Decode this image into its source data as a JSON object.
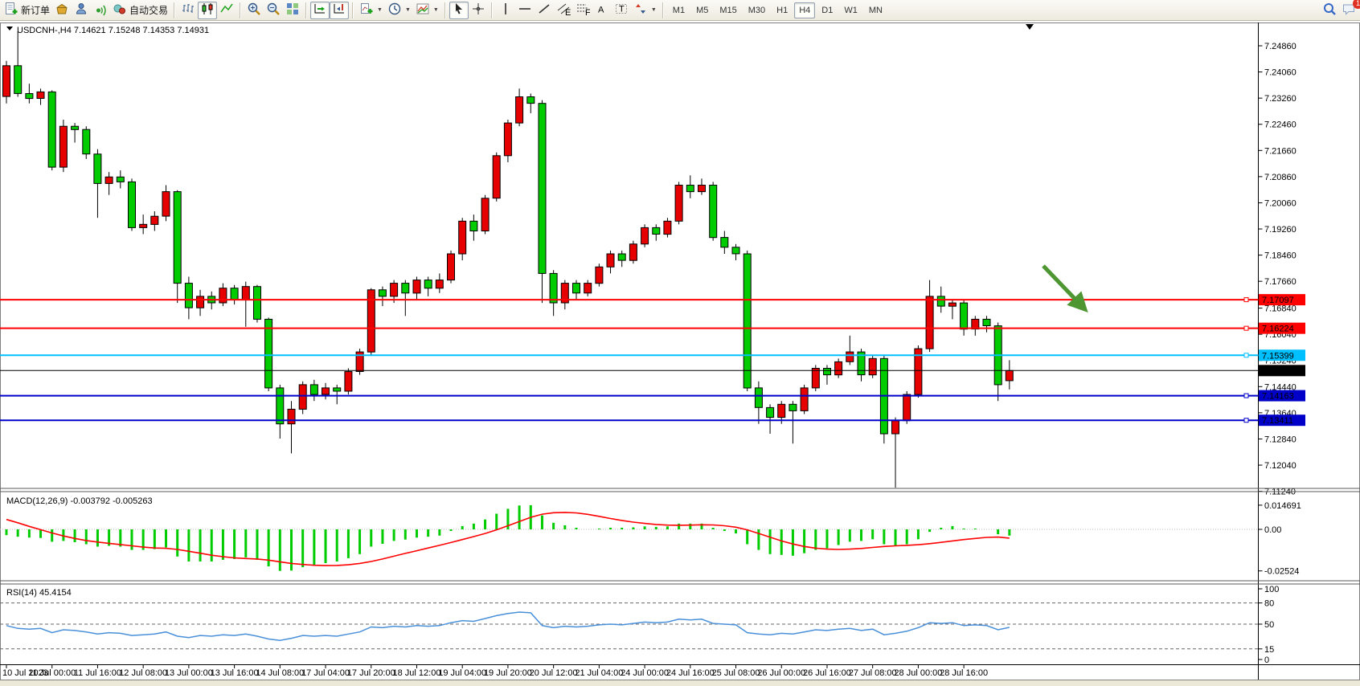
{
  "toolbar": {
    "new_order_label": "新订单",
    "auto_trading_label": "自动交易",
    "icon_names": [
      "new-order",
      "mailbox",
      "profile",
      "signal",
      "auto-trading",
      "bar-chart",
      "candlestick-chart",
      "line-chart",
      "zoom-in",
      "zoom-out",
      "tile-windows",
      "auto-scroll",
      "chart-shift",
      "indicators",
      "periods",
      "templates",
      "cursor",
      "crosshair",
      "vertical-line",
      "horizontal-line",
      "trendline",
      "equidistant-channel",
      "fibonacci-retracement",
      "text",
      "text-label",
      "arrows",
      "search",
      "chat"
    ],
    "pressed_buttons": [
      "candlestick-chart",
      "auto-scroll",
      "chart-shift",
      "cursor"
    ],
    "timeframes": [
      "M1",
      "M5",
      "M15",
      "M30",
      "H1",
      "H4",
      "D1",
      "W1",
      "MN"
    ],
    "active_timeframe": "H4",
    "notification_badge": "1"
  },
  "chart": {
    "symbol_period": "USDCNH-,H4",
    "ohlc": "7.14621 7.15248 7.14353 7.14931"
  },
  "chart_data": {
    "type": "candlestick",
    "symbol": "USDCNH",
    "timeframe": "H4",
    "ohlc_current": {
      "open": 7.14621,
      "high": 7.15248,
      "low": 7.14353,
      "close": 7.14931
    },
    "colors": {
      "up": "#E60000",
      "down": "#00CC00",
      "outline": "#000000",
      "background": "#FFFFFF"
    },
    "price_ticks": [
      "7.24860",
      "7.24060",
      "7.23260",
      "7.22460",
      "7.21660",
      "7.20860",
      "7.20060",
      "7.19260",
      "7.18460",
      "7.17660",
      "7.16840",
      "7.16040",
      "7.15240",
      "7.14440",
      "7.13640",
      "7.12840",
      "7.12040",
      "7.11240"
    ],
    "x_labels": [
      "10 Jul 2023",
      "11 Jul 00:00",
      "11 Jul 16:00",
      "12 Jul 08:00",
      "13 Jul 00:00",
      "13 Jul 16:00",
      "14 Jul 08:00",
      "17 Jul 04:00",
      "17 Jul 20:00",
      "18 Jul 12:00",
      "19 Jul 04:00",
      "19 Jul 20:00",
      "20 Jul 12:00",
      "21 Jul 04:00",
      "24 Jul 00:00",
      "24 Jul 16:00",
      "25 Jul 08:00",
      "26 Jul 00:00",
      "26 Jul 16:00",
      "27 Jul 08:00",
      "28 Jul 00:00",
      "28 Jul 16:00"
    ],
    "hlines": [
      {
        "label": "7.17097",
        "value": 7.17097,
        "color": "#FF0000",
        "width": 2
      },
      {
        "label": "7.16224",
        "value": 7.16224,
        "color": "#FF0000",
        "width": 2
      },
      {
        "label": "7.15399",
        "value": 7.15399,
        "color": "#00BFFF",
        "width": 2
      },
      {
        "label": "7.14163",
        "value": 7.14163,
        "color": "#0000C8",
        "width": 2
      },
      {
        "label": "7.13411",
        "value": 7.13411,
        "color": "#0000C8",
        "width": 2
      }
    ],
    "current_price": {
      "label": "7.14931",
      "value": 7.14931,
      "color": "#000000"
    },
    "annotation_arrow": {
      "color": "#4E9632",
      "from": [
        1298,
        331
      ],
      "to": [
        1345,
        380
      ]
    },
    "candles": [
      [
        7.2331,
        7.244,
        7.231,
        7.2425
      ],
      [
        7.2425,
        7.253,
        7.233,
        7.234
      ],
      [
        7.234,
        7.237,
        7.231,
        7.2325
      ],
      [
        7.2325,
        7.2355,
        7.2305,
        7.2345
      ],
      [
        7.2345,
        7.235,
        7.2105,
        7.2115
      ],
      [
        7.2115,
        7.226,
        7.21,
        7.224
      ],
      [
        7.224,
        7.225,
        7.219,
        7.223
      ],
      [
        7.223,
        7.224,
        7.214,
        7.2155
      ],
      [
        7.2155,
        7.217,
        7.196,
        7.2065
      ],
      [
        7.2065,
        7.21,
        7.203,
        7.2085
      ],
      [
        7.2085,
        7.2105,
        7.205,
        7.207
      ],
      [
        7.207,
        7.208,
        7.192,
        7.193
      ],
      [
        7.193,
        7.197,
        7.191,
        7.194
      ],
      [
        7.194,
        7.198,
        7.192,
        7.1965
      ],
      [
        7.1965,
        7.206,
        7.195,
        7.204
      ],
      [
        7.204,
        7.2045,
        7.17,
        7.176
      ],
      [
        7.176,
        7.178,
        7.165,
        7.1685
      ],
      [
        7.1685,
        7.174,
        7.166,
        7.172
      ],
      [
        7.172,
        7.1735,
        7.168,
        7.17
      ],
      [
        7.17,
        7.176,
        7.169,
        7.1745
      ],
      [
        7.1745,
        7.1755,
        7.1695,
        7.171
      ],
      [
        7.171,
        7.1765,
        7.1627,
        7.175
      ],
      [
        7.175,
        7.1755,
        7.164,
        7.165
      ],
      [
        7.165,
        7.1655,
        7.143,
        7.144
      ],
      [
        7.144,
        7.145,
        7.1285,
        7.133
      ],
      [
        7.133,
        7.14,
        7.124,
        7.1375
      ],
      [
        7.1375,
        7.146,
        7.136,
        7.145
      ],
      [
        7.145,
        7.1465,
        7.14,
        7.142
      ],
      [
        7.142,
        7.1455,
        7.1405,
        7.144
      ],
      [
        7.144,
        7.145,
        7.139,
        7.143
      ],
      [
        7.143,
        7.15,
        7.142,
        7.149
      ],
      [
        7.149,
        7.156,
        7.148,
        7.155
      ],
      [
        7.155,
        7.1745,
        7.154,
        7.174
      ],
      [
        7.174,
        7.175,
        7.169,
        7.172
      ],
      [
        7.172,
        7.177,
        7.17,
        7.176
      ],
      [
        7.176,
        7.177,
        7.166,
        7.173
      ],
      [
        7.173,
        7.178,
        7.171,
        7.177
      ],
      [
        7.177,
        7.178,
        7.172,
        7.1745
      ],
      [
        7.1745,
        7.179,
        7.173,
        7.177
      ],
      [
        7.177,
        7.186,
        7.176,
        7.185
      ],
      [
        7.185,
        7.196,
        7.183,
        7.195
      ],
      [
        7.195,
        7.197,
        7.189,
        7.192
      ],
      [
        7.192,
        7.203,
        7.191,
        7.202
      ],
      [
        7.202,
        7.216,
        7.201,
        7.215
      ],
      [
        7.215,
        7.226,
        7.213,
        7.225
      ],
      [
        7.225,
        7.2355,
        7.224,
        7.233
      ],
      [
        7.233,
        7.234,
        7.228,
        7.231
      ],
      [
        7.231,
        7.232,
        7.17,
        7.179
      ],
      [
        7.179,
        7.18,
        7.166,
        7.17
      ],
      [
        7.17,
        7.177,
        7.168,
        7.176
      ],
      [
        7.176,
        7.177,
        7.171,
        7.173
      ],
      [
        7.173,
        7.177,
        7.172,
        7.176
      ],
      [
        7.176,
        7.182,
        7.175,
        7.181
      ],
      [
        7.181,
        7.186,
        7.179,
        7.185
      ],
      [
        7.185,
        7.186,
        7.181,
        7.183
      ],
      [
        7.183,
        7.189,
        7.182,
        7.188
      ],
      [
        7.188,
        7.194,
        7.187,
        7.193
      ],
      [
        7.193,
        7.194,
        7.189,
        7.191
      ],
      [
        7.191,
        7.196,
        7.19,
        7.195
      ],
      [
        7.195,
        7.207,
        7.194,
        7.206
      ],
      [
        7.206,
        7.209,
        7.202,
        7.204
      ],
      [
        7.204,
        7.208,
        7.203,
        7.206
      ],
      [
        7.206,
        7.207,
        7.189,
        7.19
      ],
      [
        7.19,
        7.192,
        7.185,
        7.187
      ],
      [
        7.187,
        7.188,
        7.183,
        7.185
      ],
      [
        7.185,
        7.186,
        7.143,
        7.144
      ],
      [
        7.144,
        7.146,
        7.133,
        7.138
      ],
      [
        7.138,
        7.139,
        7.13,
        7.135
      ],
      [
        7.135,
        7.14,
        7.133,
        7.139
      ],
      [
        7.139,
        7.14,
        7.127,
        7.137
      ],
      [
        7.137,
        7.145,
        7.136,
        7.144
      ],
      [
        7.144,
        7.151,
        7.143,
        7.15
      ],
      [
        7.15,
        7.151,
        7.145,
        7.148
      ],
      [
        7.148,
        7.153,
        7.147,
        7.152
      ],
      [
        7.152,
        7.16,
        7.151,
        7.155
      ],
      [
        7.155,
        7.156,
        7.146,
        7.148
      ],
      [
        7.148,
        7.154,
        7.147,
        7.153
      ],
      [
        7.153,
        7.154,
        7.127,
        7.13
      ],
      [
        7.13,
        7.135,
        7.1135,
        7.134
      ],
      [
        7.134,
        7.143,
        7.133,
        7.142
      ],
      [
        7.142,
        7.157,
        7.141,
        7.156
      ],
      [
        7.156,
        7.177,
        7.155,
        7.172
      ],
      [
        7.172,
        7.175,
        7.167,
        7.169
      ],
      [
        7.169,
        7.171,
        7.165,
        7.17
      ],
      [
        7.17,
        7.171,
        7.16,
        7.162
      ],
      [
        7.162,
        7.166,
        7.16,
        7.165
      ],
      [
        7.165,
        7.166,
        7.161,
        7.163
      ],
      [
        7.163,
        7.164,
        7.14,
        7.145
      ],
      [
        7.14621,
        7.15248,
        7.14353,
        7.14931
      ]
    ],
    "macd": {
      "label": "MACD(12,26,9)",
      "values": "-0.003792 -0.005263",
      "axis": [
        "0.014691",
        "0.00",
        "-0.02524"
      ],
      "hist_color": "#00CC00",
      "signal_color": "#FF0000",
      "histogram": [
        -0.0035,
        -0.0045,
        -0.005,
        -0.0052,
        -0.0075,
        -0.007,
        -0.0078,
        -0.009,
        -0.0105,
        -0.01,
        -0.0105,
        -0.0125,
        -0.0125,
        -0.012,
        -0.011,
        -0.0165,
        -0.0195,
        -0.0195,
        -0.0195,
        -0.0185,
        -0.018,
        -0.017,
        -0.0185,
        -0.0225,
        -0.0252,
        -0.025,
        -0.023,
        -0.022,
        -0.0205,
        -0.0195,
        -0.0175,
        -0.015,
        -0.0105,
        -0.0088,
        -0.007,
        -0.0062,
        -0.005,
        -0.0045,
        -0.0038,
        -0.001,
        0.002,
        0.0035,
        0.006,
        0.0095,
        0.0125,
        0.0145,
        0.0147,
        0.0085,
        0.004,
        0.0025,
        0.001,
        0.0,
        0.0005,
        0.001,
        0.001,
        0.0012,
        0.0018,
        0.0015,
        0.0018,
        0.0035,
        0.0035,
        0.0035,
        0.001,
        -0.001,
        -0.0025,
        -0.009,
        -0.0125,
        -0.015,
        -0.0155,
        -0.016,
        -0.0145,
        -0.0125,
        -0.0115,
        -0.0095,
        -0.0075,
        -0.007,
        -0.006,
        -0.009,
        -0.01,
        -0.009,
        -0.006,
        -0.0015,
        0.001,
        0.002,
        0.0005,
        0.0005,
        0.0,
        -0.003,
        -0.0038
      ],
      "signal": [
        0.006,
        0.004,
        0.0018,
        -0.0002,
        -0.0022,
        -0.004,
        -0.0055,
        -0.0068,
        -0.0077,
        -0.0085,
        -0.0092,
        -0.01,
        -0.0108,
        -0.0113,
        -0.0115,
        -0.0122,
        -0.0133,
        -0.0145,
        -0.0157,
        -0.0166,
        -0.0173,
        -0.0177,
        -0.018,
        -0.0187,
        -0.0197,
        -0.0207,
        -0.0213,
        -0.0218,
        -0.022,
        -0.0219,
        -0.0215,
        -0.0207,
        -0.0195,
        -0.018,
        -0.0163,
        -0.0146,
        -0.013,
        -0.0113,
        -0.0097,
        -0.008,
        -0.0062,
        -0.0044,
        -0.0025,
        -0.0003,
        0.0022,
        0.0048,
        0.0073,
        0.0092,
        0.0101,
        0.0103,
        0.01,
        0.0091,
        0.0079,
        0.0066,
        0.0054,
        0.0044,
        0.0036,
        0.003,
        0.0026,
        0.0025,
        0.0026,
        0.0028,
        0.0027,
        0.0022,
        0.0013,
        -0.0003,
        -0.0025,
        -0.0048,
        -0.007,
        -0.0089,
        -0.0104,
        -0.0114,
        -0.012,
        -0.0122,
        -0.012,
        -0.0116,
        -0.011,
        -0.0104,
        -0.01,
        -0.0097,
        -0.0093,
        -0.0087,
        -0.0079,
        -0.007,
        -0.0062,
        -0.0055,
        -0.0049,
        -0.0047,
        -0.0053
      ]
    },
    "rsi": {
      "label": "RSI(14)",
      "value": "45.4154",
      "axis": [
        "100",
        "80",
        "50",
        "15",
        "0"
      ],
      "levels": [
        80,
        50,
        15
      ],
      "line_color": "#4A90D9",
      "values": [
        48,
        44,
        43,
        44,
        38,
        42,
        41,
        39,
        36,
        38,
        37,
        34,
        35,
        36,
        39,
        33,
        31,
        34,
        33,
        35,
        34,
        36,
        33,
        29,
        27,
        30,
        34,
        33,
        34,
        33,
        36,
        39,
        46,
        45,
        47,
        46,
        48,
        47,
        48,
        52,
        55,
        54,
        58,
        62,
        65,
        67,
        66,
        48,
        45,
        47,
        46,
        47,
        49,
        50,
        49,
        51,
        53,
        52,
        53,
        57,
        56,
        57,
        51,
        50,
        49,
        38,
        36,
        35,
        37,
        36,
        39,
        42,
        41,
        43,
        44,
        41,
        43,
        35,
        37,
        40,
        45,
        52,
        51,
        52,
        48,
        49,
        48,
        42,
        45.4154
      ]
    }
  }
}
